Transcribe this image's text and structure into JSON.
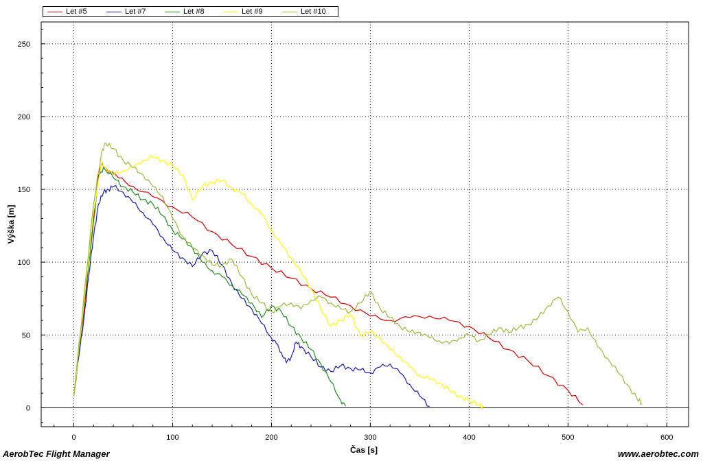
{
  "footer": {
    "left": "AerobTec Flight Manager",
    "right": "www.aerobtec.com"
  },
  "chart_data": {
    "type": "line",
    "title": "",
    "xlabel": "Čas [s]",
    "ylabel": "Výška [m]",
    "xlim": [
      -33,
      622
    ],
    "ylim": [
      -13,
      265
    ],
    "xticks": [
      0,
      100,
      200,
      300,
      400,
      500,
      600
    ],
    "yticks": [
      0,
      50,
      100,
      150,
      200,
      250
    ],
    "grid": true,
    "legend_position": "top-left",
    "series": [
      {
        "name": "Let #5",
        "color": "#cc0000",
        "x": [
          0,
          10,
          20,
          25,
          28,
          32,
          45,
          60,
          80,
          100,
          120,
          140,
          160,
          180,
          200,
          220,
          240,
          260,
          280,
          300,
          320,
          340,
          360,
          380,
          400,
          420,
          440,
          460,
          480,
          500,
          515
        ],
        "y": [
          8,
          65,
          130,
          160,
          167,
          165,
          158,
          152,
          145,
          138,
          131,
          121,
          112,
          104,
          96,
          89,
          82,
          76,
          70,
          63,
          60,
          62,
          63,
          60,
          56,
          48,
          40,
          32,
          22,
          12,
          2
        ]
      },
      {
        "name": "Let #7",
        "color": "#1a1aaa",
        "x": [
          0,
          5,
          10,
          15,
          20,
          25,
          30,
          35,
          40,
          50,
          60,
          70,
          80,
          90,
          100,
          110,
          120,
          130,
          140,
          150,
          160,
          170,
          180,
          190,
          200,
          205,
          210,
          215,
          220,
          225,
          230,
          240,
          250,
          260,
          270,
          280,
          290,
          300,
          310,
          320,
          330,
          340,
          350,
          360
        ],
        "y": [
          8,
          35,
          60,
          90,
          118,
          140,
          148,
          150,
          152,
          148,
          141,
          134,
          126,
          117,
          108,
          103,
          97,
          106,
          108,
          98,
          85,
          75,
          68,
          58,
          48,
          44,
          38,
          31,
          35,
          45,
          42,
          35,
          28,
          25,
          29,
          27,
          26,
          24,
          28,
          30,
          24,
          16,
          8,
          1
        ]
      },
      {
        "name": "Let #8",
        "color": "#228b22",
        "x": [
          0,
          10,
          20,
          25,
          30,
          40,
          50,
          60,
          70,
          80,
          90,
          100,
          110,
          120,
          130,
          140,
          150,
          160,
          170,
          180,
          190,
          200,
          210,
          220,
          230,
          240,
          250,
          260,
          270,
          275
        ],
        "y": [
          8,
          68,
          128,
          158,
          165,
          158,
          152,
          148,
          143,
          140,
          132,
          122,
          116,
          110,
          100,
          94,
          90,
          84,
          78,
          72,
          62,
          70,
          66,
          56,
          48,
          40,
          30,
          18,
          5,
          1
        ]
      },
      {
        "name": "Let #9",
        "color": "#ffff00",
        "x": [
          0,
          10,
          20,
          28,
          32,
          40,
          50,
          60,
          70,
          80,
          90,
          100,
          110,
          120,
          130,
          140,
          150,
          160,
          170,
          180,
          190,
          200,
          210,
          220,
          230,
          240,
          250,
          260,
          270,
          280,
          290,
          300,
          310,
          320,
          330,
          340,
          350,
          360,
          370,
          380,
          390,
          400,
          410,
          415
        ],
        "y": [
          8,
          70,
          135,
          168,
          165,
          160,
          163,
          165,
          170,
          172,
          170,
          166,
          160,
          143,
          152,
          155,
          156,
          151,
          147,
          140,
          133,
          122,
          112,
          103,
          93,
          82,
          68,
          56,
          60,
          64,
          50,
          52,
          48,
          40,
          35,
          28,
          22,
          20,
          17,
          12,
          8,
          5,
          2,
          0
        ]
      },
      {
        "name": "Let #10",
        "color": "#9aba3c",
        "x": [
          0,
          10,
          20,
          28,
          32,
          40,
          50,
          60,
          70,
          80,
          90,
          100,
          110,
          120,
          130,
          140,
          150,
          160,
          170,
          180,
          190,
          200,
          210,
          220,
          230,
          240,
          250,
          260,
          270,
          280,
          290,
          300,
          310,
          320,
          330,
          340,
          350,
          360,
          370,
          380,
          390,
          400,
          410,
          420,
          430,
          440,
          450,
          460,
          470,
          480,
          490,
          500,
          510,
          520,
          530,
          540,
          550,
          560,
          570,
          575
        ],
        "y": [
          8,
          75,
          140,
          175,
          182,
          178,
          170,
          165,
          160,
          152,
          145,
          130,
          118,
          110,
          105,
          98,
          98,
          102,
          90,
          78,
          72,
          66,
          70,
          72,
          68,
          74,
          76,
          72,
          68,
          66,
          72,
          80,
          68,
          62,
          56,
          52,
          52,
          48,
          46,
          44,
          48,
          50,
          46,
          50,
          55,
          52,
          55,
          57,
          62,
          70,
          76,
          66,
          52,
          55,
          42,
          34,
          25,
          16,
          6,
          3
        ]
      }
    ]
  }
}
